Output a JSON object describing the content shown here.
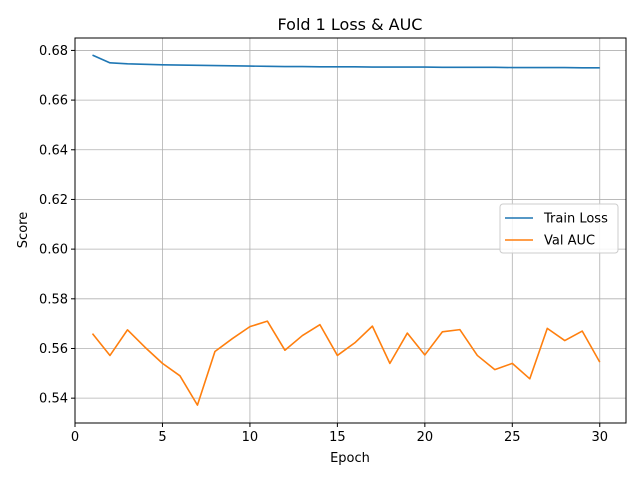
{
  "chart_data": {
    "type": "line",
    "title": "Fold 1 Loss & AUC",
    "xlabel": "Epoch",
    "ylabel": "Score",
    "xlim": [
      0,
      31.5
    ],
    "ylim": [
      0.53,
      0.685
    ],
    "xticks": [
      0,
      5,
      10,
      15,
      20,
      25,
      30
    ],
    "yticks": [
      0.54,
      0.56,
      0.58,
      0.6,
      0.62,
      0.64,
      0.66,
      0.68
    ],
    "grid": true,
    "legend_position": "center-right",
    "x": [
      1,
      2,
      3,
      4,
      5,
      6,
      7,
      8,
      9,
      10,
      11,
      12,
      13,
      14,
      15,
      16,
      17,
      18,
      19,
      20,
      21,
      22,
      23,
      24,
      25,
      26,
      27,
      28,
      29,
      30
    ],
    "series": [
      {
        "name": "Train Loss",
        "color": "#1f77b4",
        "values": [
          0.6781,
          0.675,
          0.6746,
          0.6744,
          0.6742,
          0.6741,
          0.674,
          0.6739,
          0.6738,
          0.6737,
          0.6736,
          0.6735,
          0.6735,
          0.6734,
          0.6734,
          0.6734,
          0.6733,
          0.6733,
          0.6733,
          0.6733,
          0.6732,
          0.6732,
          0.6732,
          0.6732,
          0.6731,
          0.6731,
          0.6731,
          0.6731,
          0.673,
          0.673
        ]
      },
      {
        "name": "Val AUC",
        "color": "#ff7f0e",
        "values": [
          0.566,
          0.5572,
          0.5675,
          0.5605,
          0.554,
          0.549,
          0.5372,
          0.5588,
          0.564,
          0.5688,
          0.571,
          0.5593,
          0.5652,
          0.5696,
          0.5572,
          0.5623,
          0.569,
          0.554,
          0.5662,
          0.5574,
          0.5667,
          0.5676,
          0.5572,
          0.5515,
          0.554,
          0.5478,
          0.5681,
          0.5632,
          0.567,
          0.5545
        ]
      }
    ]
  }
}
